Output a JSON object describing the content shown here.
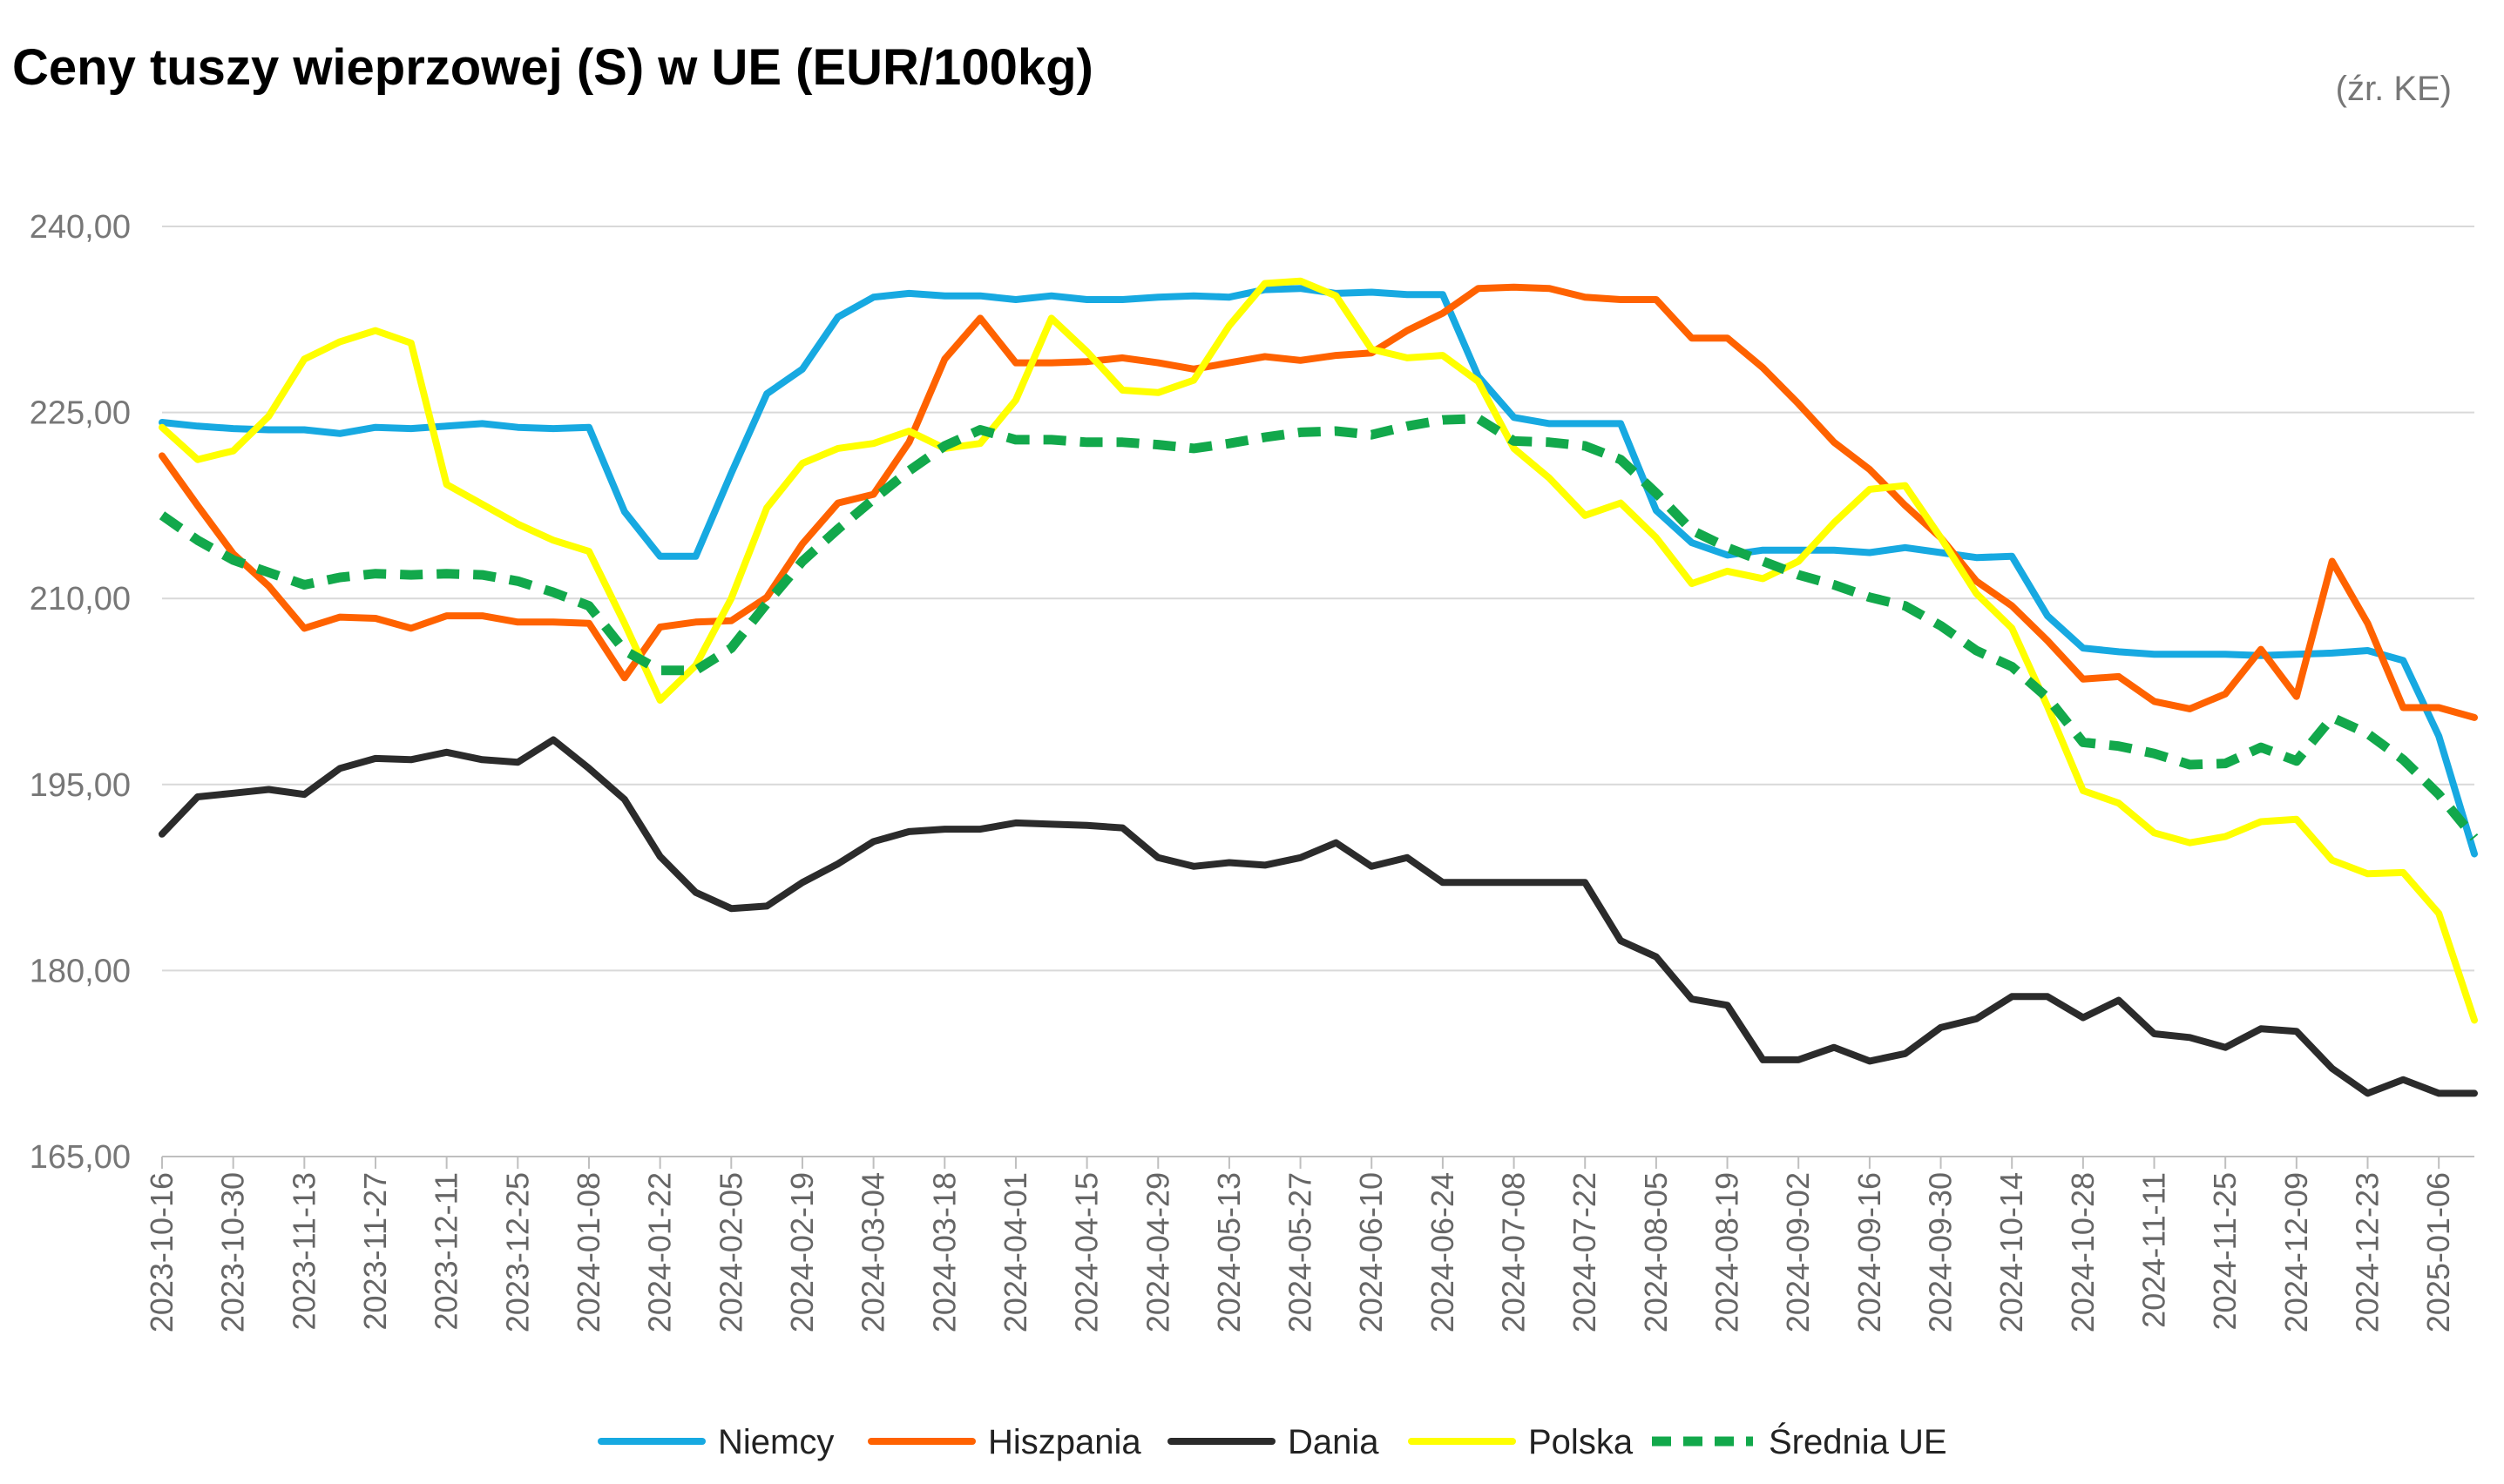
{
  "title": "Ceny tuszy wieprzowej (S) w UE (EUR/100kg)",
  "source": "(źr. KE)",
  "chart_data": {
    "type": "line",
    "title": "Ceny tuszy wieprzowej (S) w UE (EUR/100kg)",
    "xlabel": "",
    "ylabel": "",
    "ylim": [
      165,
      240
    ],
    "yticks": [
      165,
      180,
      195,
      210,
      225,
      240
    ],
    "ytick_labels": [
      "165,00",
      "180,00",
      "195,00",
      "210,00",
      "225,00",
      "240,00"
    ],
    "categories": [
      "2023-10-16",
      "2023-10-23",
      "2023-10-30",
      "2023-11-06",
      "2023-11-13",
      "2023-11-20",
      "2023-11-27",
      "2023-12-04",
      "2023-12-11",
      "2023-12-18",
      "2023-12-25",
      "2024-01-01",
      "2024-01-08",
      "2024-01-15",
      "2024-01-22",
      "2024-01-29",
      "2024-02-05",
      "2024-02-12",
      "2024-02-19",
      "2024-02-26",
      "2024-03-04",
      "2024-03-11",
      "2024-03-18",
      "2024-03-25",
      "2024-04-01",
      "2024-04-08",
      "2024-04-15",
      "2024-04-22",
      "2024-04-29",
      "2024-05-06",
      "2024-05-13",
      "2024-05-20",
      "2024-05-27",
      "2024-06-03",
      "2024-06-10",
      "2024-06-17",
      "2024-06-24",
      "2024-07-01",
      "2024-07-08",
      "2024-07-15",
      "2024-07-22",
      "2024-07-29",
      "2024-08-05",
      "2024-08-12",
      "2024-08-19",
      "2024-08-26",
      "2024-09-02",
      "2024-09-09",
      "2024-09-16",
      "2024-09-23",
      "2024-09-30",
      "2024-10-07",
      "2024-10-14",
      "2024-10-21",
      "2024-10-28",
      "2024-11-04",
      "2024-11-11",
      "2024-11-18",
      "2024-11-25",
      "2024-12-02",
      "2024-12-09",
      "2024-12-16",
      "2024-12-23",
      "2024-12-30",
      "2025-01-06",
      "2025-01-13"
    ],
    "tick_labels": [
      "2023-10-16",
      "2023-10-30",
      "2023-11-13",
      "2023-11-27",
      "2023-12-11",
      "2023-12-25",
      "2024-01-08",
      "2024-01-22",
      "2024-02-05",
      "2024-02-19",
      "2024-03-04",
      "2024-03-18",
      "2024-04-01",
      "2024-04-15",
      "2024-04-29",
      "2024-05-13",
      "2024-05-27",
      "2024-06-10",
      "2024-06-24",
      "2024-07-08",
      "2024-07-22",
      "2024-08-05",
      "2024-08-19",
      "2024-09-02",
      "2024-09-16",
      "2024-09-30",
      "2024-10-14",
      "2024-10-28",
      "2024-11-11",
      "2024-11-25",
      "2024-12-09",
      "2024-12-23",
      "2025-01-06"
    ],
    "series": [
      {
        "name": "Niemcy",
        "color": "#17a9e1",
        "dashed": false,
        "values": [
          224.2,
          223.9,
          223.7,
          223.6,
          223.6,
          223.3,
          223.8,
          223.7,
          223.9,
          224.1,
          223.8,
          223.7,
          223.8,
          217.0,
          213.4,
          213.4,
          220.1,
          226.5,
          228.5,
          232.7,
          234.3,
          234.6,
          234.4,
          234.4,
          234.1,
          234.4,
          234.1,
          234.1,
          234.3,
          234.4,
          234.3,
          234.9,
          235.0,
          234.6,
          234.7,
          234.5,
          234.5,
          227.9,
          224.6,
          224.1,
          224.1,
          224.1,
          217.1,
          214.5,
          213.5,
          213.9,
          213.9,
          213.9,
          213.7,
          214.1,
          213.7,
          213.3,
          213.4,
          208.6,
          206.0,
          205.7,
          205.5,
          205.5,
          205.5,
          205.4,
          205.5,
          205.6,
          205.8,
          205.0,
          198.9,
          189.4
        ]
      },
      {
        "name": "Hiszpania",
        "color": "#ff6200",
        "dashed": false,
        "values": [
          221.5,
          217.5,
          213.6,
          211.0,
          207.6,
          208.5,
          208.4,
          207.6,
          208.6,
          208.6,
          208.1,
          208.1,
          208.0,
          203.6,
          207.7,
          208.1,
          208.2,
          210.1,
          214.4,
          217.7,
          218.4,
          222.6,
          229.3,
          232.6,
          229.0,
          229.0,
          229.1,
          229.4,
          229.0,
          228.5,
          229.0,
          229.5,
          229.2,
          229.6,
          229.8,
          231.6,
          233.0,
          235.0,
          235.1,
          235.0,
          234.3,
          234.1,
          234.1,
          231.0,
          231.0,
          228.6,
          225.7,
          222.6,
          220.4,
          217.5,
          214.9,
          211.4,
          209.4,
          206.6,
          203.5,
          203.7,
          201.7,
          201.1,
          202.3,
          205.9,
          202.1,
          213.0,
          208.0,
          201.2,
          201.2,
          200.4
        ]
      },
      {
        "name": "Dania",
        "color": "#2b2b2b",
        "dashed": false,
        "values": [
          191.0,
          194.0,
          194.3,
          194.6,
          194.2,
          196.3,
          197.1,
          197.0,
          197.6,
          197.0,
          196.8,
          198.6,
          196.3,
          193.8,
          189.2,
          186.3,
          185.0,
          185.2,
          187.1,
          188.6,
          190.4,
          191.2,
          191.4,
          191.4,
          191.9,
          191.8,
          191.7,
          191.5,
          189.1,
          188.4,
          188.7,
          188.5,
          189.1,
          190.3,
          188.4,
          189.1,
          187.1,
          187.1,
          187.1,
          187.1,
          187.1,
          182.4,
          181.1,
          177.7,
          177.2,
          172.8,
          172.8,
          173.8,
          172.7,
          173.3,
          175.4,
          176.1,
          177.9,
          177.9,
          176.2,
          177.6,
          174.9,
          174.6,
          173.8,
          175.3,
          175.1,
          172.1,
          170.1,
          171.2,
          170.1,
          170.1
        ]
      },
      {
        "name": "Polska",
        "color": "#ffff00",
        "dashed": false,
        "values": [
          223.8,
          221.2,
          221.9,
          224.7,
          229.3,
          230.7,
          231.6,
          230.6,
          219.2,
          217.6,
          216.0,
          214.7,
          213.8,
          208.0,
          201.8,
          204.6,
          210.0,
          217.3,
          220.9,
          222.1,
          222.5,
          223.5,
          222.1,
          222.5,
          226.0,
          232.6,
          229.9,
          226.8,
          226.6,
          227.6,
          232.0,
          235.4,
          235.6,
          234.4,
          230.1,
          229.4,
          229.6,
          227.5,
          222.1,
          219.7,
          216.7,
          217.7,
          214.9,
          211.2,
          212.2,
          211.6,
          213.0,
          216.1,
          218.8,
          219.1,
          214.9,
          210.4,
          207.6,
          201.3,
          194.5,
          193.5,
          191.1,
          190.3,
          190.8,
          192.0,
          192.2,
          188.9,
          187.8,
          187.9,
          184.6,
          176.0
        ]
      },
      {
        "name": "Średnia UE",
        "color": "#12a84b",
        "dashed": true,
        "values": [
          216.7,
          214.7,
          213.1,
          212.1,
          211.1,
          211.7,
          212.0,
          211.9,
          212.0,
          211.9,
          211.4,
          210.5,
          209.4,
          205.8,
          204.2,
          204.2,
          206.0,
          209.6,
          213.0,
          215.6,
          218.0,
          220.3,
          222.3,
          223.6,
          222.8,
          222.8,
          222.6,
          222.6,
          222.4,
          222.1,
          222.5,
          223.0,
          223.4,
          223.5,
          223.2,
          223.9,
          224.4,
          224.5,
          222.7,
          222.6,
          222.3,
          221.2,
          218.5,
          215.5,
          214.1,
          213.0,
          211.9,
          211.1,
          210.1,
          209.4,
          207.8,
          205.8,
          204.5,
          202.0,
          198.4,
          198.1,
          197.5,
          196.6,
          196.7,
          198.0,
          196.9,
          200.4,
          199.1,
          197.0,
          194.2,
          190.7
        ]
      }
    ],
    "legend_position": "bottom-center",
    "grid": true
  }
}
